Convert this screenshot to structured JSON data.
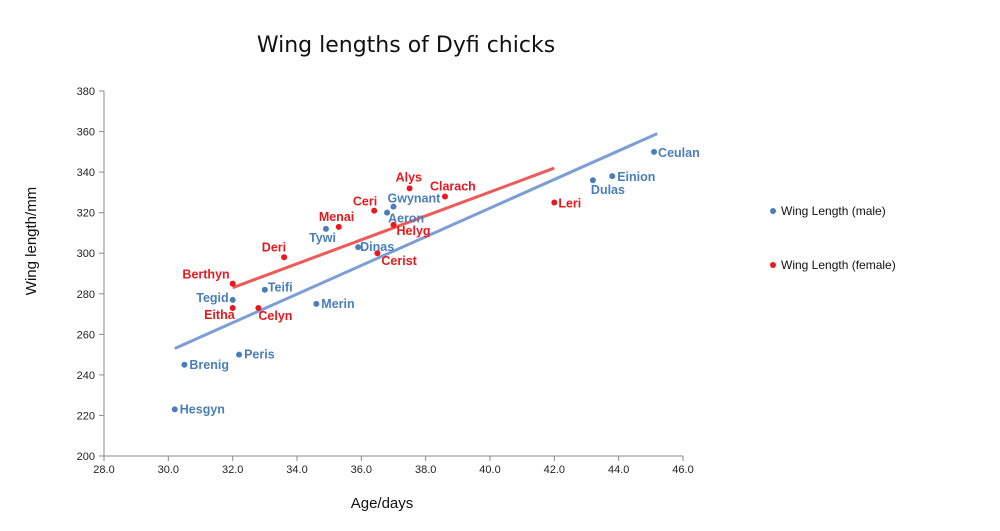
{
  "chart_data": {
    "type": "scatter",
    "title": "Wing lengths of Dyfi chicks",
    "xlabel": "Age/days",
    "ylabel": "Wing length/mm",
    "xlim": [
      28,
      46
    ],
    "ylim": [
      200,
      380
    ],
    "xticks": [
      "28.0",
      "30.0",
      "32.0",
      "34.0",
      "36.0",
      "38.0",
      "40.0",
      "42.0",
      "44.0",
      "46.0"
    ],
    "yticks": [
      "200",
      "220",
      "240",
      "260",
      "280",
      "300",
      "320",
      "340",
      "360",
      "380"
    ],
    "grid": false,
    "legend_position": "right",
    "series": [
      {
        "name": "Wing Length (male)",
        "color": "#4a7ebb",
        "trend_color": "#7b9ed6",
        "trendline": [
          {
            "x": 30.2,
            "y": 253
          },
          {
            "x": 45.2,
            "y": 359
          }
        ],
        "points": [
          {
            "label": "Hesgyn",
            "x": 30.2,
            "y": 223
          },
          {
            "label": "Brenig",
            "x": 30.5,
            "y": 245
          },
          {
            "label": "Peris",
            "x": 32.2,
            "y": 250
          },
          {
            "label": "Tegid",
            "x": 32.0,
            "y": 277
          },
          {
            "label": "Teifi",
            "x": 33.0,
            "y": 282
          },
          {
            "label": "Merin",
            "x": 34.6,
            "y": 275
          },
          {
            "label": "Tywi",
            "x": 34.9,
            "y": 312
          },
          {
            "label": "Dinas",
            "x": 35.9,
            "y": 303
          },
          {
            "label": "Aeron",
            "x": 36.8,
            "y": 320
          },
          {
            "label": "Gwynant",
            "x": 37.0,
            "y": 323
          },
          {
            "label": "Dulas",
            "x": 43.2,
            "y": 336
          },
          {
            "label": "Einion",
            "x": 43.8,
            "y": 338
          },
          {
            "label": "Ceulan",
            "x": 45.1,
            "y": 350
          }
        ]
      },
      {
        "name": "Wing Length (female)",
        "color": "#e8191e",
        "trend_color": "#ee5a57",
        "trendline": [
          {
            "x": 32.0,
            "y": 283
          },
          {
            "x": 42.0,
            "y": 342
          }
        ],
        "points": [
          {
            "label": "Berthyn",
            "x": 32.0,
            "y": 285
          },
          {
            "label": "Eitha",
            "x": 32.0,
            "y": 273
          },
          {
            "label": "Celyn",
            "x": 32.8,
            "y": 273
          },
          {
            "label": "Deri",
            "x": 33.6,
            "y": 298
          },
          {
            "label": "Menai",
            "x": 35.3,
            "y": 313
          },
          {
            "label": "Ceri",
            "x": 36.4,
            "y": 321
          },
          {
            "label": "Cerist",
            "x": 36.5,
            "y": 300
          },
          {
            "label": "Helyg",
            "x": 37.0,
            "y": 314
          },
          {
            "label": "Alys",
            "x": 37.5,
            "y": 332
          },
          {
            "label": "Clarach",
            "x": 38.6,
            "y": 328
          },
          {
            "label": "Leri",
            "x": 42.0,
            "y": 325
          }
        ]
      }
    ]
  }
}
